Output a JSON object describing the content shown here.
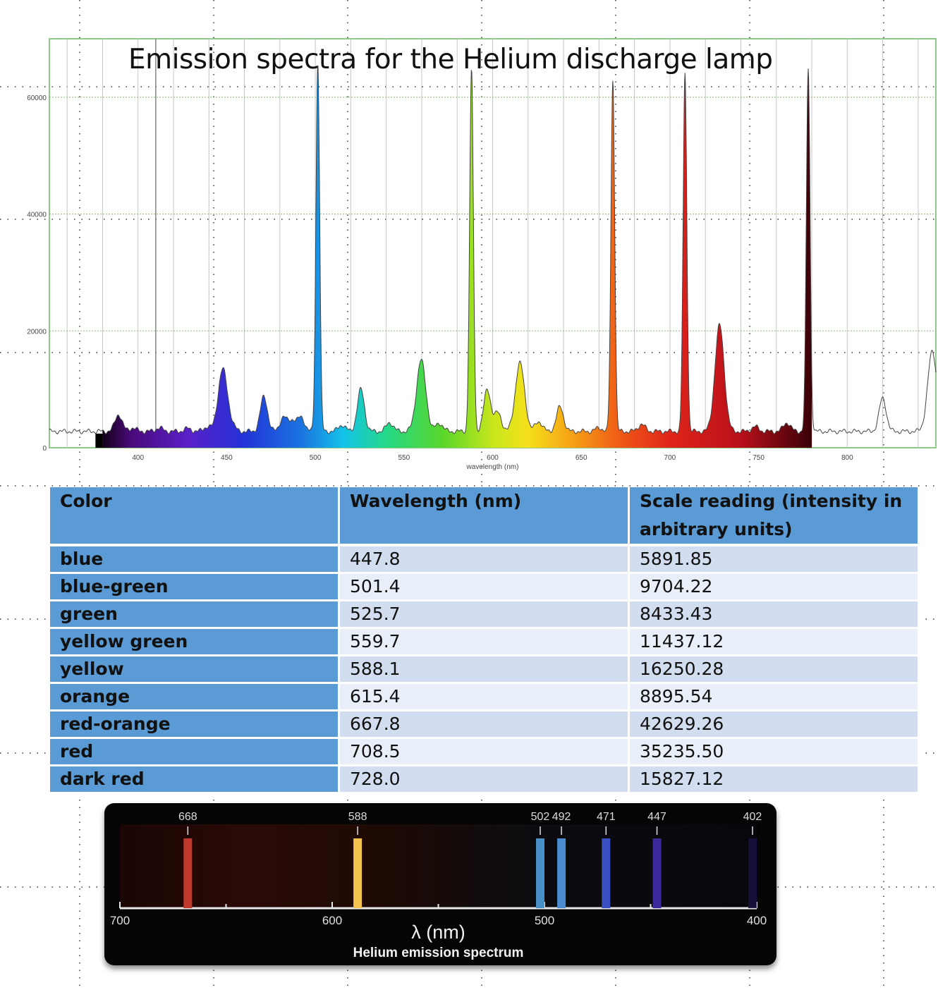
{
  "chart_data": [
    {
      "type": "area",
      "title": "Emission spectra for the Helium discharge lamp",
      "xlabel": "wavelength (nm)",
      "ylabel": "",
      "xlim": [
        350,
        850
      ],
      "ylim": [
        0,
        70000
      ],
      "x_ticks": [
        "400",
        "450",
        "500",
        "550",
        "600",
        "650",
        "700",
        "750",
        "800"
      ],
      "y_ticks": [
        "0",
        "20000",
        "40000",
        "60000"
      ],
      "grid": true,
      "fill": "spectral colour gradient",
      "baseline": 2800,
      "peaks": [
        {
          "x": 389,
          "y": 5700
        },
        {
          "x": 397,
          "y": 3400
        },
        {
          "x": 412,
          "y": 3400
        },
        {
          "x": 428,
          "y": 3300
        },
        {
          "x": 439,
          "y": 3600
        },
        {
          "x": 447.8,
          "y": 13500
        },
        {
          "x": 453,
          "y": 3600
        },
        {
          "x": 471,
          "y": 8800
        },
        {
          "x": 482,
          "y": 5200
        },
        {
          "x": 487,
          "y": 4700
        },
        {
          "x": 492,
          "y": 5200
        },
        {
          "x": 501.4,
          "y": 66000
        },
        {
          "x": 515,
          "y": 3900
        },
        {
          "x": 525.7,
          "y": 10000
        },
        {
          "x": 542,
          "y": 4300
        },
        {
          "x": 559.7,
          "y": 15000
        },
        {
          "x": 570,
          "y": 4200
        },
        {
          "x": 588.1,
          "y": 64500
        },
        {
          "x": 597,
          "y": 10000
        },
        {
          "x": 603,
          "y": 6000
        },
        {
          "x": 615.4,
          "y": 14500
        },
        {
          "x": 626,
          "y": 4500
        },
        {
          "x": 638,
          "y": 7000
        },
        {
          "x": 660,
          "y": 3400
        },
        {
          "x": 667.8,
          "y": 63000
        },
        {
          "x": 684,
          "y": 4000
        },
        {
          "x": 708.5,
          "y": 64000
        },
        {
          "x": 728,
          "y": 21000
        },
        {
          "x": 748,
          "y": 3600
        },
        {
          "x": 766,
          "y": 4300
        },
        {
          "x": 778,
          "y": 65000
        },
        {
          "x": 820,
          "y": 8500
        },
        {
          "x": 848,
          "y": 16500
        }
      ]
    },
    {
      "type": "table",
      "columns": [
        "Color",
        "Wavelength (nm)",
        "Scale reading (intensity in arbitrary units)"
      ],
      "rows": [
        [
          "blue",
          "447.8",
          "5891.85"
        ],
        [
          "blue-green",
          "501.4",
          "9704.22"
        ],
        [
          "green",
          "525.7",
          "8433.43"
        ],
        [
          "yellow green",
          "559.7",
          "11437.12"
        ],
        [
          "yellow",
          "588.1",
          "16250.28"
        ],
        [
          "orange",
          "615.4",
          "8895.54"
        ],
        [
          "red-orange",
          "667.8",
          "42629.26"
        ],
        [
          "red",
          "708.5",
          "35235.50"
        ],
        [
          "dark red",
          "728.0",
          "15827.12"
        ]
      ]
    },
    {
      "type": "line-spectrum",
      "title": "Helium emission spectrum",
      "xlabel": "λ (nm)",
      "x_ticks": [
        "700",
        "600",
        "500",
        "400"
      ],
      "xlim": [
        700,
        400
      ],
      "lines": [
        {
          "wavelength": 668,
          "label": "668",
          "color": "#c0392b"
        },
        {
          "wavelength": 588,
          "label": "588",
          "color": "#f2c14e"
        },
        {
          "wavelength": 502,
          "label": "502",
          "color": "#4a90c8"
        },
        {
          "wavelength": 492,
          "label": "492",
          "color": "#4a8ad0"
        },
        {
          "wavelength": 471,
          "label": "471",
          "color": "#3a4fc0"
        },
        {
          "wavelength": 447,
          "label": "447",
          "color": "#3b2a9a"
        },
        {
          "wavelength": 402,
          "label": "402",
          "color": "#1a1040"
        }
      ]
    }
  ]
}
